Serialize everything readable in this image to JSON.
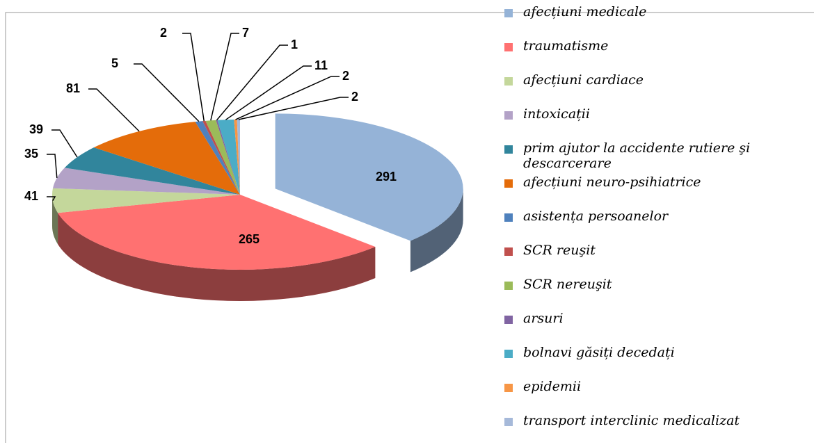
{
  "chart_data": {
    "type": "pie",
    "categories": [
      "afecțiuni medicale",
      "traumatisme",
      "afecțiuni cardiace",
      "intoxicații",
      "prim ajutor la accidente rutiere şi descarcerare",
      "afecțiuni neuro-psihiatrice",
      "asistența persoanelor",
      "SCR reuşit",
      "SCR nereuşit",
      "arsuri",
      "bolnavi găsiți decedați",
      "epidemii",
      "transport interclinic medicalizat"
    ],
    "values": [
      291,
      265,
      41,
      35,
      39,
      81,
      5,
      2,
      7,
      1,
      11,
      2,
      2
    ],
    "colors": [
      "#95b3d7",
      "#ff7171",
      "#c4d79b",
      "#b3a2c7",
      "#31859c",
      "#e46c0a",
      "#4f81bd",
      "#c0504d",
      "#9bbb59",
      "#8064a2",
      "#4bacc6",
      "#f79646",
      "#a6b9d9"
    ],
    "legend": "right"
  }
}
